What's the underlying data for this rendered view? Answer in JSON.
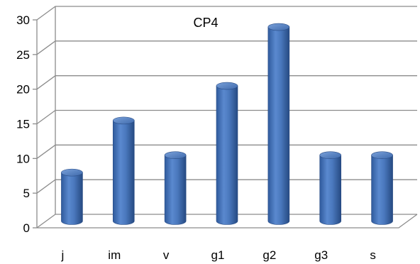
{
  "chart_data": {
    "type": "bar",
    "title": "CP4",
    "xlabel": "",
    "ylabel": "",
    "categories": [
      "j",
      "im",
      "v",
      "g1",
      "g2",
      "g3",
      "s"
    ],
    "values": [
      7,
      14.5,
      9.5,
      19.5,
      28,
      9.5,
      9.5
    ],
    "ylim": [
      0,
      30
    ],
    "yticks": [
      "0",
      "5",
      "10",
      "15",
      "20",
      "25",
      "30"
    ],
    "grid": true,
    "legend": "none",
    "style": "3d-cylinder",
    "colors": {
      "bar": "#4a78bd",
      "bar_dark": "#2b4f8a",
      "bar_light": "#8fb0e0",
      "grid": "#8c8c8c"
    }
  }
}
